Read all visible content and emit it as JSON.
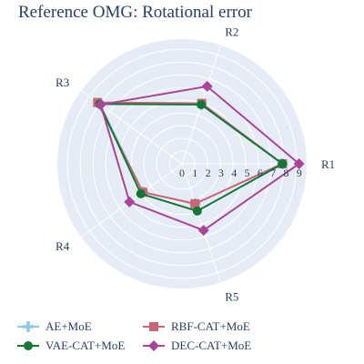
{
  "chart_data": {
    "type": "radar",
    "title": "Reference OMG: Rotational error",
    "axes": [
      "R1",
      "R2",
      "R3",
      "R4",
      "R5"
    ],
    "radial_ticks": [
      "0",
      "1",
      "2",
      "3",
      "4",
      "5",
      "6",
      "7",
      "8",
      "9"
    ],
    "radial_range": [
      0,
      9.8
    ],
    "legend_position": "bottom",
    "series": [
      {
        "name": "AE+MoE",
        "color": "#8fc9e8",
        "marker": "cross",
        "values": [
          7.9,
          4.9,
          8.0,
          3.8,
          3.3
        ]
      },
      {
        "name": "RBF-CAT+MoE",
        "color": "#cc6677",
        "marker": "square",
        "values": [
          7.9,
          5.0,
          8.2,
          3.8,
          3.3
        ]
      },
      {
        "name": "VAE-CAT+MoE",
        "color": "#117733",
        "marker": "circle",
        "values": [
          7.9,
          4.9,
          8.0,
          4.0,
          3.9
        ]
      },
      {
        "name": "DEC-CAT+MoE",
        "color": "#aa4499",
        "marker": "diamond",
        "values": [
          9.2,
          6.4,
          7.9,
          5.1,
          5.5
        ]
      }
    ]
  }
}
